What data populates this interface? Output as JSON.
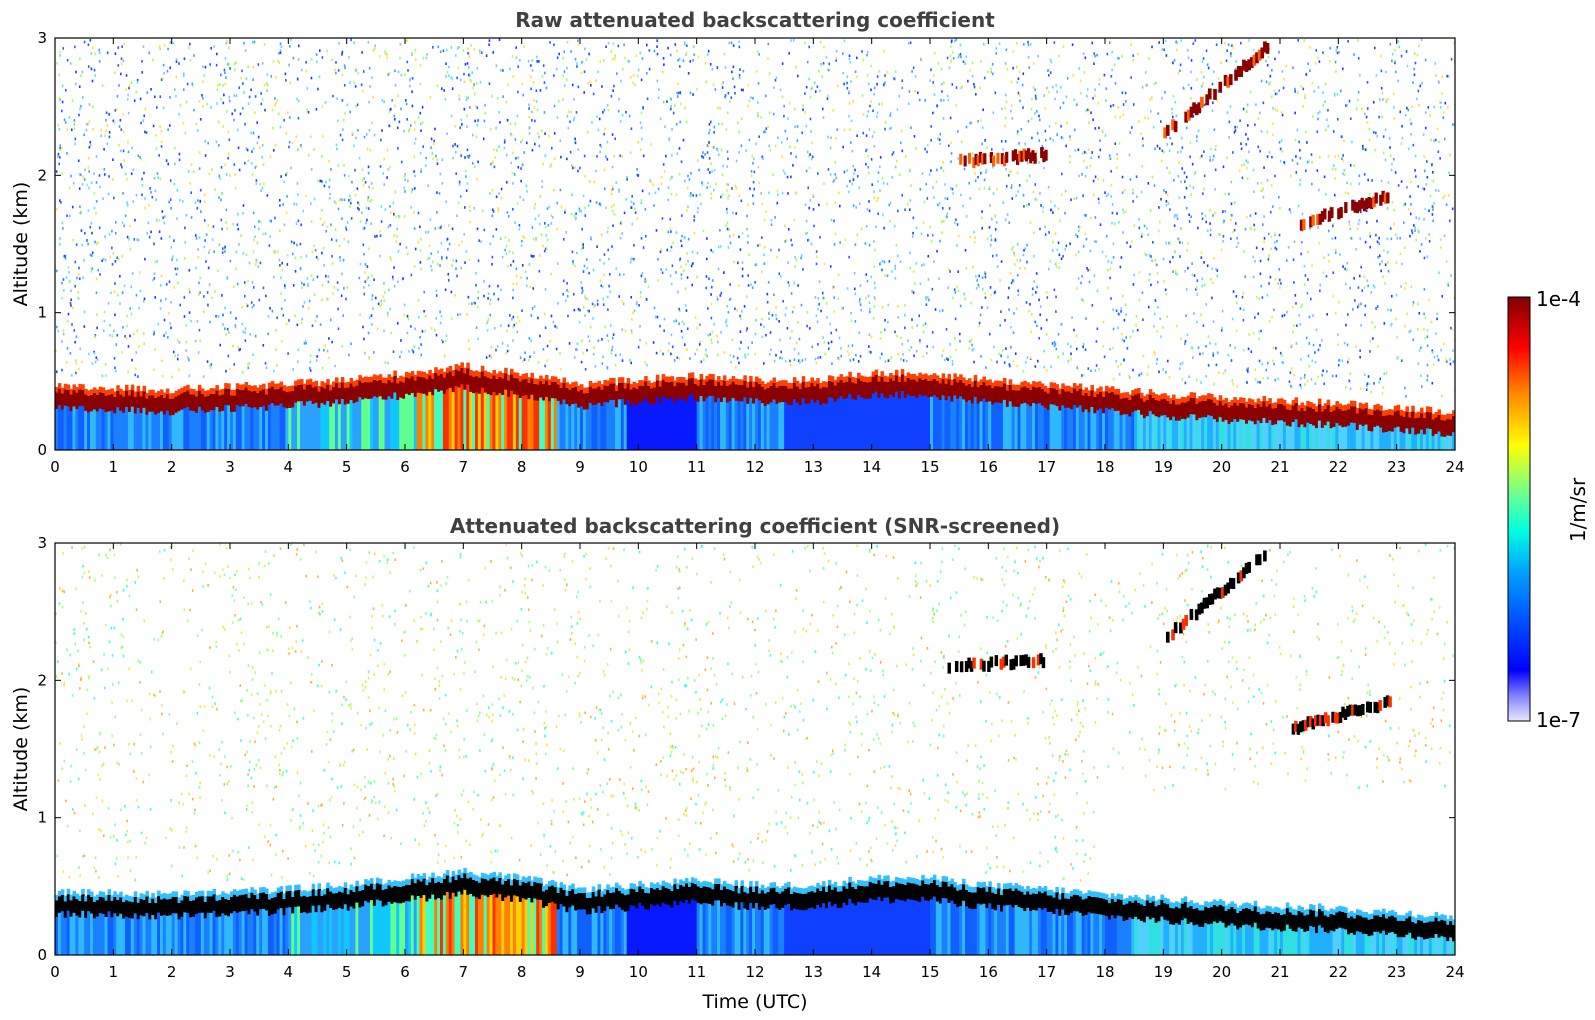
{
  "chart_data": [
    {
      "type": "heatmap",
      "title": "Raw attenuated backscattering coefficient",
      "xlabel": "",
      "ylabel": "Altitude (km)",
      "xlim": [
        0,
        24
      ],
      "ylim": [
        0,
        3
      ],
      "xticks": [
        "0",
        "1",
        "2",
        "3",
        "4",
        "5",
        "6",
        "7",
        "8",
        "9",
        "10",
        "11",
        "12",
        "13",
        "14",
        "15",
        "16",
        "17",
        "18",
        "19",
        "20",
        "21",
        "22",
        "23",
        "24"
      ],
      "yticks": [
        "0",
        "1",
        "2",
        "3"
      ],
      "colorscale": "jet",
      "screened": false,
      "boundary_layer_top_km": {
        "x": [
          0,
          2,
          4,
          5,
          6,
          7,
          8,
          9,
          10,
          11,
          12,
          13,
          14,
          15,
          16,
          17,
          18,
          19,
          20,
          21,
          22,
          23,
          24
        ],
        "y": [
          0.4,
          0.38,
          0.42,
          0.45,
          0.5,
          0.55,
          0.5,
          0.42,
          0.45,
          0.48,
          0.45,
          0.45,
          0.5,
          0.5,
          0.45,
          0.42,
          0.38,
          0.35,
          0.32,
          0.3,
          0.28,
          0.25,
          0.22
        ]
      },
      "cloud_layers": [
        {
          "x_start": 19.0,
          "x_end": 20.8,
          "y_start": 2.3,
          "y_end": 2.95
        },
        {
          "x_start": 15.5,
          "x_end": 17.0,
          "y_start": 2.1,
          "y_end": 2.15
        },
        {
          "x_start": 21.3,
          "x_end": 22.9,
          "y_start": 1.65,
          "y_end": 1.85
        }
      ]
    },
    {
      "type": "heatmap",
      "title": "Attenuated backscattering coefficient (SNR-screened)",
      "xlabel": "Time (UTC)",
      "ylabel": "Altitude (km)",
      "xlim": [
        0,
        24
      ],
      "ylim": [
        0,
        3
      ],
      "xticks": [
        "0",
        "1",
        "2",
        "3",
        "4",
        "5",
        "6",
        "7",
        "8",
        "9",
        "10",
        "11",
        "12",
        "13",
        "14",
        "15",
        "16",
        "17",
        "18",
        "19",
        "20",
        "21",
        "22",
        "23",
        "24"
      ],
      "yticks": [
        "0",
        "1",
        "2",
        "3"
      ],
      "colorscale": "jet",
      "screened": true,
      "boundary_layer_top_km": {
        "x": [
          0,
          2,
          4,
          5,
          6,
          7,
          8,
          9,
          10,
          11,
          12,
          13,
          14,
          15,
          16,
          17,
          18,
          19,
          20,
          21,
          22,
          23,
          24
        ],
        "y": [
          0.4,
          0.38,
          0.42,
          0.45,
          0.5,
          0.55,
          0.5,
          0.42,
          0.45,
          0.48,
          0.45,
          0.45,
          0.5,
          0.5,
          0.45,
          0.42,
          0.38,
          0.35,
          0.32,
          0.3,
          0.28,
          0.25,
          0.22
        ]
      },
      "cloud_layers": [
        {
          "x_start": 19.0,
          "x_end": 20.8,
          "y_start": 2.3,
          "y_end": 2.95
        },
        {
          "x_start": 15.3,
          "x_end": 17.0,
          "y_start": 2.1,
          "y_end": 2.15
        },
        {
          "x_start": 21.2,
          "x_end": 22.9,
          "y_start": 1.65,
          "y_end": 1.85
        }
      ]
    }
  ],
  "colorbar": {
    "label": "1/m/sr",
    "max_label": "1e-4",
    "min_label": "1e-7",
    "colors": [
      "#00007f",
      "#0000ff",
      "#007fff",
      "#00ffff",
      "#7fff7f",
      "#ffff00",
      "#ff7f00",
      "#ff0000",
      "#7f0000"
    ]
  }
}
